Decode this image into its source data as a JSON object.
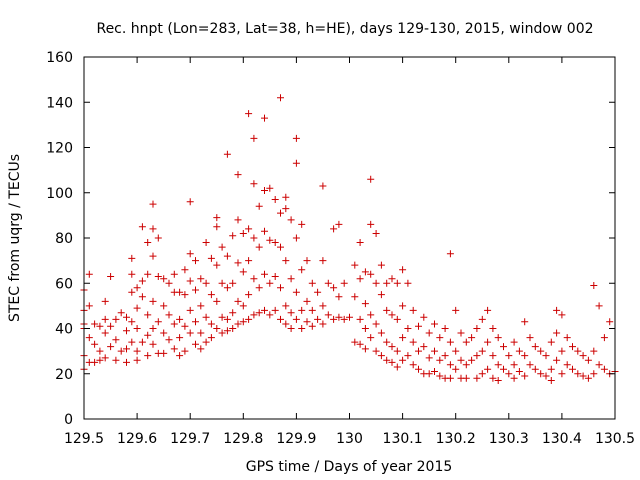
{
  "chart_data": {
    "type": "scatter",
    "title": "Rec. hnpt (Lon=283, Lat=38, h=HE), days 129-130, 2015, window 002",
    "xlabel": "GPS time / Days of year 2015",
    "ylabel": "STEC from uqrg / TECUs",
    "xlim": [
      129.5,
      130.5
    ],
    "ylim": [
      0,
      160
    ],
    "xticks": [
      129.5,
      129.6,
      129.7,
      129.8,
      129.9,
      130,
      130.1,
      130.2,
      130.3,
      130.4,
      130.5
    ],
    "xtick_labels": [
      "129.5",
      "129.6",
      "129.7",
      "129.8",
      "129.9",
      "130",
      "130.1",
      "130.2",
      "130.3",
      "130.4",
      "130.5"
    ],
    "yticks": [
      0,
      20,
      40,
      60,
      80,
      100,
      120,
      140,
      160
    ],
    "ytick_labels": [
      "0",
      "20",
      "40",
      "60",
      "80",
      "100",
      "120",
      "140",
      "160"
    ],
    "grid": false,
    "marker": "plus",
    "color": "#cc0000",
    "points": [
      [
        129.5,
        57
      ],
      [
        129.5,
        48
      ],
      [
        129.5,
        42
      ],
      [
        129.5,
        40
      ],
      [
        129.5,
        28
      ],
      [
        129.5,
        22
      ],
      [
        129.51,
        64
      ],
      [
        129.51,
        50
      ],
      [
        129.51,
        36
      ],
      [
        129.51,
        25
      ],
      [
        129.52,
        42
      ],
      [
        129.52,
        33
      ],
      [
        129.52,
        25
      ],
      [
        129.53,
        41
      ],
      [
        129.53,
        30
      ],
      [
        129.53,
        26
      ],
      [
        129.54,
        52
      ],
      [
        129.54,
        44
      ],
      [
        129.54,
        38
      ],
      [
        129.54,
        27
      ],
      [
        129.55,
        63
      ],
      [
        129.55,
        41
      ],
      [
        129.55,
        32
      ],
      [
        129.56,
        44
      ],
      [
        129.56,
        35
      ],
      [
        129.56,
        26
      ],
      [
        129.57,
        47
      ],
      [
        129.57,
        30
      ],
      [
        129.58,
        45
      ],
      [
        129.58,
        39
      ],
      [
        129.58,
        31
      ],
      [
        129.58,
        25
      ],
      [
        129.59,
        71
      ],
      [
        129.59,
        64
      ],
      [
        129.59,
        56
      ],
      [
        129.59,
        43
      ],
      [
        129.59,
        34
      ],
      [
        129.6,
        58
      ],
      [
        129.6,
        49
      ],
      [
        129.6,
        40
      ],
      [
        129.6,
        30
      ],
      [
        129.6,
        26
      ],
      [
        129.61,
        85
      ],
      [
        129.61,
        61
      ],
      [
        129.61,
        54
      ],
      [
        129.61,
        34
      ],
      [
        129.62,
        78
      ],
      [
        129.62,
        64
      ],
      [
        129.62,
        46
      ],
      [
        129.62,
        37
      ],
      [
        129.62,
        28
      ],
      [
        129.63,
        95
      ],
      [
        129.63,
        84
      ],
      [
        129.63,
        72
      ],
      [
        129.63,
        52
      ],
      [
        129.63,
        40
      ],
      [
        129.63,
        33
      ],
      [
        129.64,
        80
      ],
      [
        129.64,
        63
      ],
      [
        129.64,
        43
      ],
      [
        129.64,
        29
      ],
      [
        129.65,
        62
      ],
      [
        129.65,
        50
      ],
      [
        129.65,
        38
      ],
      [
        129.65,
        29
      ],
      [
        129.66,
        60
      ],
      [
        129.66,
        46
      ],
      [
        129.66,
        35
      ],
      [
        129.67,
        64
      ],
      [
        129.67,
        56
      ],
      [
        129.67,
        42
      ],
      [
        129.67,
        31
      ],
      [
        129.68,
        56
      ],
      [
        129.68,
        44
      ],
      [
        129.68,
        36
      ],
      [
        129.68,
        28
      ],
      [
        129.69,
        66
      ],
      [
        129.69,
        55
      ],
      [
        129.69,
        41
      ],
      [
        129.69,
        30
      ],
      [
        129.7,
        96
      ],
      [
        129.7,
        73
      ],
      [
        129.7,
        61
      ],
      [
        129.7,
        48
      ],
      [
        129.7,
        38
      ],
      [
        129.71,
        70
      ],
      [
        129.71,
        57
      ],
      [
        129.71,
        43
      ],
      [
        129.71,
        33
      ],
      [
        129.72,
        62
      ],
      [
        129.72,
        50
      ],
      [
        129.72,
        38
      ],
      [
        129.72,
        31
      ],
      [
        129.73,
        78
      ],
      [
        129.73,
        60
      ],
      [
        129.73,
        45
      ],
      [
        129.73,
        34
      ],
      [
        129.74,
        71
      ],
      [
        129.74,
        55
      ],
      [
        129.74,
        42
      ],
      [
        129.74,
        36
      ],
      [
        129.75,
        89
      ],
      [
        129.75,
        85
      ],
      [
        129.75,
        68
      ],
      [
        129.75,
        52
      ],
      [
        129.75,
        40
      ],
      [
        129.76,
        76
      ],
      [
        129.76,
        60
      ],
      [
        129.76,
        45
      ],
      [
        129.76,
        38
      ],
      [
        129.77,
        117
      ],
      [
        129.77,
        72
      ],
      [
        129.77,
        58
      ],
      [
        129.77,
        44
      ],
      [
        129.77,
        39
      ],
      [
        129.78,
        81
      ],
      [
        129.78,
        60
      ],
      [
        129.78,
        47
      ],
      [
        129.78,
        40
      ],
      [
        129.79,
        108
      ],
      [
        129.79,
        88
      ],
      [
        129.79,
        69
      ],
      [
        129.79,
        52
      ],
      [
        129.79,
        42
      ],
      [
        129.8,
        82
      ],
      [
        129.8,
        65
      ],
      [
        129.8,
        50
      ],
      [
        129.8,
        43
      ],
      [
        129.81,
        135
      ],
      [
        129.81,
        84
      ],
      [
        129.81,
        70
      ],
      [
        129.81,
        55
      ],
      [
        129.81,
        44
      ],
      [
        129.82,
        124
      ],
      [
        129.82,
        104
      ],
      [
        129.82,
        80
      ],
      [
        129.82,
        62
      ],
      [
        129.82,
        46
      ],
      [
        129.83,
        94
      ],
      [
        129.83,
        76
      ],
      [
        129.83,
        58
      ],
      [
        129.83,
        47
      ],
      [
        129.84,
        133
      ],
      [
        129.84,
        101
      ],
      [
        129.84,
        83
      ],
      [
        129.84,
        64
      ],
      [
        129.84,
        48
      ],
      [
        129.85,
        102
      ],
      [
        129.85,
        79
      ],
      [
        129.85,
        60
      ],
      [
        129.85,
        46
      ],
      [
        129.86,
        97
      ],
      [
        129.86,
        78
      ],
      [
        129.86,
        63
      ],
      [
        129.86,
        48
      ],
      [
        129.87,
        142
      ],
      [
        129.87,
        91
      ],
      [
        129.87,
        76
      ],
      [
        129.87,
        58
      ],
      [
        129.87,
        44
      ],
      [
        129.88,
        98
      ],
      [
        129.88,
        93
      ],
      [
        129.88,
        70
      ],
      [
        129.88,
        50
      ],
      [
        129.88,
        42
      ],
      [
        129.89,
        88
      ],
      [
        129.89,
        62
      ],
      [
        129.89,
        47
      ],
      [
        129.89,
        40
      ],
      [
        129.9,
        124
      ],
      [
        129.9,
        113
      ],
      [
        129.9,
        80
      ],
      [
        129.9,
        56
      ],
      [
        129.9,
        44
      ],
      [
        129.91,
        86
      ],
      [
        129.91,
        66
      ],
      [
        129.91,
        48
      ],
      [
        129.91,
        40
      ],
      [
        129.92,
        70
      ],
      [
        129.92,
        52
      ],
      [
        129.92,
        43
      ],
      [
        129.93,
        60
      ],
      [
        129.93,
        48
      ],
      [
        129.93,
        41
      ],
      [
        129.94,
        56
      ],
      [
        129.94,
        44
      ],
      [
        129.95,
        103
      ],
      [
        129.95,
        70
      ],
      [
        129.95,
        50
      ],
      [
        129.95,
        42
      ],
      [
        129.96,
        60
      ],
      [
        129.96,
        46
      ],
      [
        129.97,
        84
      ],
      [
        129.97,
        58
      ],
      [
        129.97,
        44
      ],
      [
        129.98,
        86
      ],
      [
        129.98,
        54
      ],
      [
        129.98,
        45
      ],
      [
        129.99,
        60
      ],
      [
        129.99,
        44
      ],
      [
        130,
        45
      ],
      [
        130.01,
        68
      ],
      [
        130.01,
        54
      ],
      [
        130.01,
        34
      ],
      [
        130.02,
        78
      ],
      [
        130.02,
        62
      ],
      [
        130.02,
        44
      ],
      [
        130.02,
        33
      ],
      [
        130.03,
        65
      ],
      [
        130.03,
        51
      ],
      [
        130.03,
        40
      ],
      [
        130.03,
        31
      ],
      [
        130.04,
        106
      ],
      [
        130.04,
        86
      ],
      [
        130.04,
        64
      ],
      [
        130.04,
        46
      ],
      [
        130.04,
        36
      ],
      [
        130.05,
        82
      ],
      [
        130.05,
        60
      ],
      [
        130.05,
        42
      ],
      [
        130.05,
        30
      ],
      [
        130.06,
        68
      ],
      [
        130.06,
        55
      ],
      [
        130.06,
        38
      ],
      [
        130.06,
        28
      ],
      [
        130.07,
        60
      ],
      [
        130.07,
        48
      ],
      [
        130.07,
        34
      ],
      [
        130.07,
        26
      ],
      [
        130.08,
        62
      ],
      [
        130.08,
        46
      ],
      [
        130.08,
        32
      ],
      [
        130.08,
        25
      ],
      [
        130.09,
        60
      ],
      [
        130.09,
        44
      ],
      [
        130.09,
        30
      ],
      [
        130.09,
        23
      ],
      [
        130.1,
        66
      ],
      [
        130.1,
        50
      ],
      [
        130.1,
        36
      ],
      [
        130.1,
        26
      ],
      [
        130.11,
        60
      ],
      [
        130.11,
        40
      ],
      [
        130.11,
        28
      ],
      [
        130.12,
        48
      ],
      [
        130.12,
        34
      ],
      [
        130.12,
        24
      ],
      [
        130.13,
        41
      ],
      [
        130.13,
        30
      ],
      [
        130.13,
        22
      ],
      [
        130.14,
        45
      ],
      [
        130.14,
        32
      ],
      [
        130.14,
        20
      ],
      [
        130.15,
        38
      ],
      [
        130.15,
        27
      ],
      [
        130.15,
        20
      ],
      [
        130.16,
        42
      ],
      [
        130.16,
        30
      ],
      [
        130.16,
        21
      ],
      [
        130.17,
        36
      ],
      [
        130.17,
        26
      ],
      [
        130.17,
        19
      ],
      [
        130.18,
        40
      ],
      [
        130.18,
        28
      ],
      [
        130.18,
        18
      ],
      [
        130.19,
        73
      ],
      [
        130.19,
        34
      ],
      [
        130.19,
        24
      ],
      [
        130.19,
        18
      ],
      [
        130.2,
        48
      ],
      [
        130.2,
        30
      ],
      [
        130.2,
        22
      ],
      [
        130.21,
        38
      ],
      [
        130.21,
        26
      ],
      [
        130.21,
        18
      ],
      [
        130.22,
        34
      ],
      [
        130.22,
        24
      ],
      [
        130.22,
        18
      ],
      [
        130.23,
        36
      ],
      [
        130.23,
        26
      ],
      [
        130.24,
        40
      ],
      [
        130.24,
        28
      ],
      [
        130.24,
        18
      ],
      [
        130.25,
        44
      ],
      [
        130.25,
        30
      ],
      [
        130.25,
        20
      ],
      [
        130.26,
        48
      ],
      [
        130.26,
        34
      ],
      [
        130.26,
        22
      ],
      [
        130.27,
        40
      ],
      [
        130.27,
        28
      ],
      [
        130.27,
        18
      ],
      [
        130.28,
        36
      ],
      [
        130.28,
        24
      ],
      [
        130.28,
        17
      ],
      [
        130.29,
        32
      ],
      [
        130.29,
        22
      ],
      [
        130.3,
        28
      ],
      [
        130.3,
        20
      ],
      [
        130.31,
        34
      ],
      [
        130.31,
        24
      ],
      [
        130.31,
        18
      ],
      [
        130.32,
        30
      ],
      [
        130.32,
        21
      ],
      [
        130.33,
        43
      ],
      [
        130.33,
        28
      ],
      [
        130.33,
        19
      ],
      [
        130.34,
        36
      ],
      [
        130.34,
        24
      ],
      [
        130.35,
        32
      ],
      [
        130.35,
        22
      ],
      [
        130.36,
        30
      ],
      [
        130.36,
        20
      ],
      [
        130.37,
        28
      ],
      [
        130.37,
        19
      ],
      [
        130.38,
        34
      ],
      [
        130.38,
        22
      ],
      [
        130.38,
        17
      ],
      [
        130.39,
        48
      ],
      [
        130.39,
        38
      ],
      [
        130.39,
        26
      ],
      [
        130.4,
        46
      ],
      [
        130.4,
        30
      ],
      [
        130.4,
        20
      ],
      [
        130.41,
        36
      ],
      [
        130.41,
        24
      ],
      [
        130.42,
        32
      ],
      [
        130.42,
        22
      ],
      [
        130.43,
        30
      ],
      [
        130.43,
        20
      ],
      [
        130.44,
        28
      ],
      [
        130.44,
        19
      ],
      [
        130.45,
        26
      ],
      [
        130.45,
        18
      ],
      [
        130.46,
        59
      ],
      [
        130.46,
        30
      ],
      [
        130.46,
        20
      ],
      [
        130.47,
        50
      ],
      [
        130.47,
        24
      ],
      [
        130.48,
        36
      ],
      [
        130.48,
        22
      ],
      [
        130.49,
        43
      ],
      [
        130.49,
        20
      ],
      [
        130.5,
        21
      ]
    ]
  }
}
